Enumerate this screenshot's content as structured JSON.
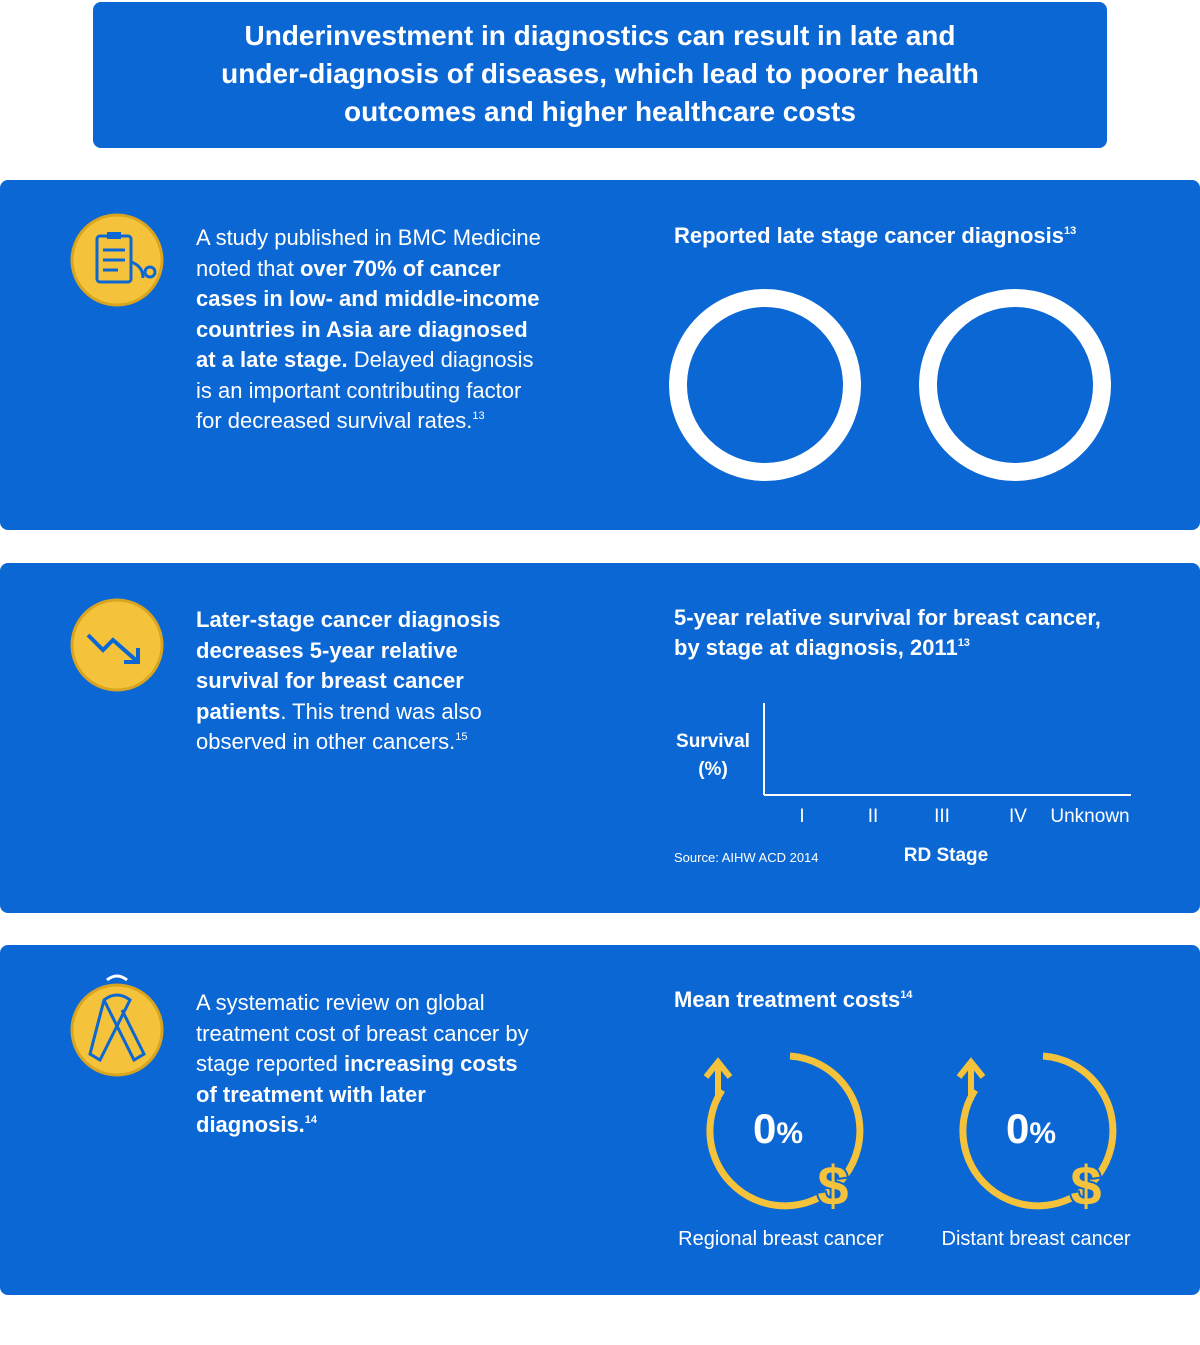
{
  "header": {
    "title_lines": [
      "Underinvestment in diagnostics can result in late and",
      "under-diagnosis of diseases, which lead to poorer health",
      "outcomes and higher healthcare costs"
    ]
  },
  "panels": [
    {
      "paragraph": [
        {
          "text": "A study published in BMC Medicine noted that ",
          "bold": false
        },
        {
          "text": "over 70% of cancer cases in low- and middle-income countries in Asia are diagnosed at a late stage.",
          "bold": true
        },
        {
          "text": " Delayed diagnosis is an important contributing factor for decreased survival rates.",
          "bold": false
        },
        {
          "text": "13",
          "bold": false,
          "sup": true
        }
      ],
      "chart_title": [
        {
          "text": "Reported late stage cancer diagnosis",
          "bold": true
        },
        {
          "text": "13",
          "bold": true,
          "sup": true
        }
      ]
    },
    {
      "paragraph": [
        {
          "text": "Later-stage cancer diagnosis decreases 5-year relative survival for breast cancer patients",
          "bold": true
        },
        {
          "text": ". This trend was also observed in other cancers.",
          "bold": false
        },
        {
          "text": "15",
          "bold": false,
          "sup": true
        }
      ],
      "chart_title_lines": [
        "5-year relative survival for breast cancer,",
        "by stage at diagnosis, 2011"
      ],
      "chart_title_sup": "13",
      "y_label_lines": [
        "Survival",
        "(%)"
      ],
      "categories": [
        "I",
        "II",
        "III",
        "IV",
        "Unknown"
      ],
      "x_label": "RD Stage",
      "source": "Source: AIHW ACD 2014"
    },
    {
      "paragraph": [
        {
          "text": "A systematic review on global treatment cost of breast cancer by stage reported ",
          "bold": false
        },
        {
          "text": "increasing costs of treatment with later diagnosis.",
          "bold": true
        },
        {
          "text": "14",
          "bold": true,
          "sup": true
        }
      ],
      "chart_title": [
        {
          "text": "Mean treatment costs",
          "bold": true
        },
        {
          "text": "14",
          "bold": true,
          "sup": true
        }
      ],
      "costs": [
        {
          "value": 0,
          "unit": "%",
          "label": "Regional breast cancer"
        },
        {
          "value": 0,
          "unit": "%",
          "label": "Distant breast cancer"
        }
      ]
    }
  ]
}
